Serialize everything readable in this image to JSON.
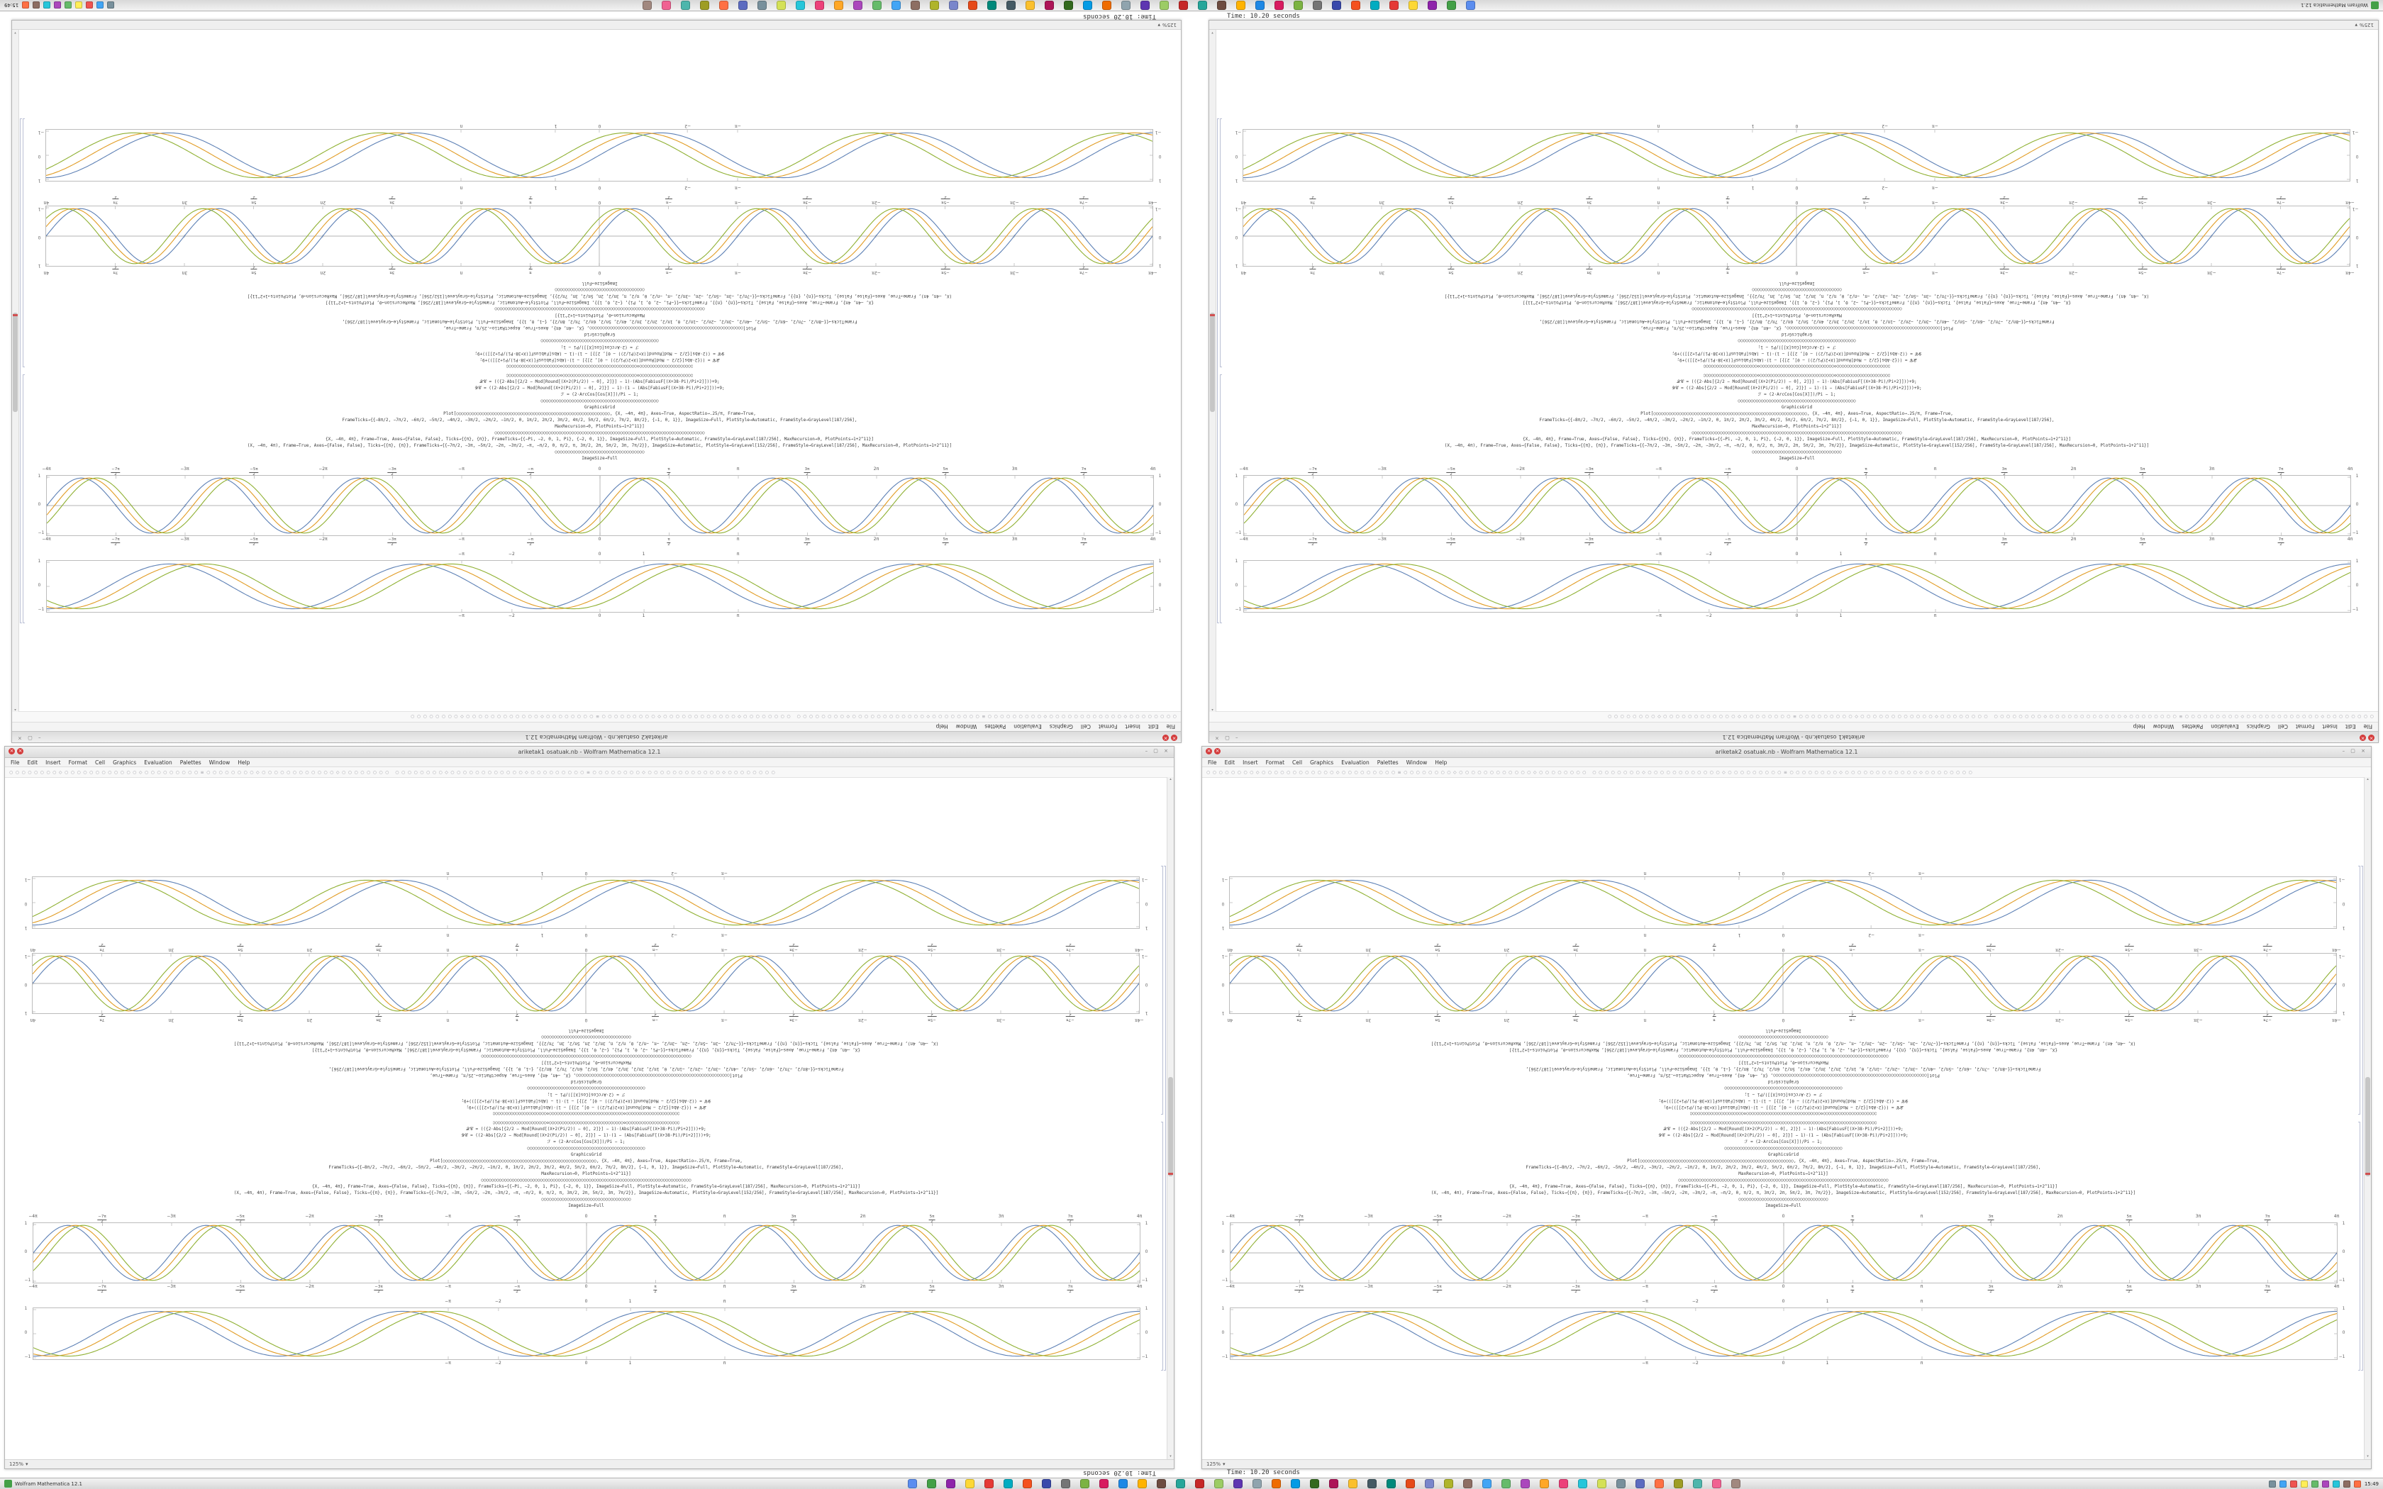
{
  "app": {
    "time_overlay": "Time: 10.20 seconds"
  },
  "windows": [
    {
      "title": "ariketak1 osatuak.nb - Wolfram Mathematica 12.1"
    },
    {
      "title": "ariketak2 osatuak.nb - Wolfram Mathematica 12.1"
    }
  ],
  "notebook": {
    "menu_items": [
      "File",
      "Edit",
      "Insert",
      "Format",
      "Cell",
      "Graphics",
      "Evaluation",
      "Palettes",
      "Window",
      "Help"
    ],
    "toolbar_glyphs": "○○○○○○○○◇○○○○○○○○○○○○◇○○○○○○○○○≡○○○○○○○○◇○○○○○○○○○○○○◇○○○○○○○○",
    "status_zoom": "125%",
    "close_glyph": "×",
    "window_controls": "– ▢ ×",
    "scroll_up_glyph": "▴",
    "scroll_down_glyph": "▾",
    "code_lines": [
      "○○○○○○○○○○○○○○○○○○○○○◇○○○○○○○○○○○○○○○○○○○○○○○○○○○○○◇○○○○○○○○○○○○○○○○○○○○○",
      "𝒳𝒞 = (({2·Abs[{2/2 − Mod[Round[(X+2(Pi/2)) − 0], 2]}] − 1)·(Abs[FabiusF[(X+38·Pi)/Pi+2]]))+9;",
      "𝒴𝒞 = ((2·Abs[{2/2 − Mod[Round[(X+2(Pi/2)) − 0], 2]}] − 1)·(1 − (Abs[FabiusF[(X+38·Pi)/Pi+2]]))+9;",
      "ℱ = (2·ArcCos[Cos[X]])/Pi − 1;",
      "○○○○○○○○○○○○○○○○○○○○○○○○○○○○○○○○○○○○○○○○○○○○○○",
      "GraphicsGrid",
      "Plot[○○○○○○○○○○○○○○○○○○○○○○○○○○○○○○○○○○○○○○○○○○○○○○○○○○○○○○○○○○○○, {X, −4π, 4π}, Axes→True, AspectRatio→.25/π, Frame→True,",
      "FrameTicks→{{−8π/2, −7π/2, −6π/2, −5π/2, −4π/2, −3π/2, −2π/2, −1π/2, 0, 1π/2, 2π/2, 3π/2, 4π/2, 5π/2, 6π/2, 7π/2, 8π/2}, {−1, 0, 1}}, ImageSize→Full, PlotStyle→Automatic, FrameStyle→GrayLevel[187/256],",
      "MaxRecursion→0, PlotPoints→1+2^11}]",
      "○○○○○○○○○○○○○○○○○○○○○○○○○○○○○○○○○○○○○○○○○○○○○○○○○○○○○○○○○○○○○○○○○○○○○○○○○○○○○○○○○○",
      "{X, −4π, 4π}, Frame→True, Axes→{False, False}, Ticks→{{π}, {π}}, FrameTicks→{{−Pi, −2, 0, 1, Pi}, {−2, 0, 1}}, ImageSize→Full, PlotStyle→Automatic, FrameStyle→GrayLevel[187/256], MaxRecursion→0, PlotPoints→1+2^11}]",
      "(X, −4π, 4π), Frame→True, Axes→{False, False}, Ticks→{{π}, {π}}, FrameTicks→{{−7π/2, −3π, −5π/2, −2π, −3π/2, −π, −π/2, 0, π/2, π, 3π/2, 2π, 5π/2, 3π, 7π/2}}, ImageSize→Automatic, PlotStyle→GrayLevel[152/256], FrameStyle→GrayLevel[187/256], MaxRecursion→0, PlotPoints→1+2^11}]",
      "○○○○○○○○○○○○○○○○○○○○○○○○○○○○○○○○○○○",
      "ImageSize→Full"
    ]
  },
  "chart_data": [
    {
      "id": "plot-dense",
      "type": "line",
      "title": "",
      "xlabel": "",
      "ylabel": "",
      "x_min": -12.566,
      "x_max": 12.566,
      "y_min": -1,
      "y_max": 1,
      "x_ticks": [
        "−4π",
        "−7π/2",
        "−3π",
        "−5π/2",
        "−2π",
        "−3π/2",
        "−π",
        "−π/2",
        "0",
        "π/2",
        "π",
        "3π/2",
        "2π",
        "5π/2",
        "3π",
        "7π/2",
        "4π"
      ],
      "y_ticks": [
        "1",
        "0",
        "−1"
      ],
      "frame": true,
      "axes": true,
      "grid": false,
      "legend": "none",
      "frame_color": "#bcbcbc",
      "height": 84,
      "series": [
        {
          "name": "curve-blue",
          "color": "#5E81B5",
          "frequency": 2,
          "phase": 0,
          "amplitude": 0.97
        },
        {
          "name": "curve-yellow",
          "color": "#E19C24",
          "frequency": 2,
          "phase": -0.35,
          "amplitude": 0.97
        },
        {
          "name": "curve-green",
          "color": "#8FB032",
          "frequency": 2,
          "phase": -0.7,
          "amplitude": 0.97
        }
      ]
    },
    {
      "id": "plot-wide",
      "type": "line",
      "title": "",
      "xlabel": "",
      "ylabel": "",
      "x_min": -12.566,
      "x_max": 12.566,
      "y_min": -1,
      "y_max": 1,
      "x_ticks": [
        "−π",
        "−2",
        "0",
        "1",
        "π"
      ],
      "x_tick_values": [
        -3.1416,
        -2,
        0,
        1,
        3.1416
      ],
      "y_ticks": [
        "1",
        "0",
        "−1"
      ],
      "frame": true,
      "axes": false,
      "grid": false,
      "legend": "none",
      "frame_color": "#bcbcbc",
      "height": 72,
      "series": [
        {
          "name": "curve-blue",
          "color": "#5E81B5",
          "frequency": 1.125,
          "phase": 0,
          "amplitude": 0.93
        },
        {
          "name": "curve-yellow",
          "color": "#E19C24",
          "frequency": 1.125,
          "phase": -0.45,
          "amplitude": 0.93
        },
        {
          "name": "curve-green",
          "color": "#8FB032",
          "frequency": 1.125,
          "phase": -0.9,
          "amplitude": 0.93
        }
      ]
    }
  ],
  "taskbar": {
    "left_label": "Wolfram Mathematica 12.1",
    "app_icon_color": "#43a047",
    "clock": "15:49",
    "app_icons": [
      "#5b8def",
      "#43a047",
      "#8e24aa",
      "#fdd835",
      "#e53935",
      "#00acc1",
      "#f4511e",
      "#3949ab",
      "#757575",
      "#7cb342",
      "#d81b60",
      "#1e88e5",
      "#ffb300",
      "#6d4c41",
      "#26a69a",
      "#c62828",
      "#9ccc65",
      "#5e35b1",
      "#90a4ae",
      "#ef6c00",
      "#039be5",
      "#33691e",
      "#ad1457",
      "#fbc02d",
      "#455a64",
      "#00897b",
      "#e64a19",
      "#7986cb",
      "#afb42b",
      "#8d6e63",
      "#42a5f5",
      "#66bb6a",
      "#ab47bc",
      "#ffa726",
      "#ec407a",
      "#26c6da",
      "#d4e157",
      "#78909c",
      "#5c6bc0",
      "#ff7043",
      "#9e9d24",
      "#4db6ac",
      "#f06292",
      "#a1887f"
    ],
    "tray_icons": [
      "#78909c",
      "#42a5f5",
      "#ef5350",
      "#ffee58",
      "#66bb6a",
      "#ab47bc",
      "#26c6da",
      "#8d6e63",
      "#ff7043"
    ]
  }
}
